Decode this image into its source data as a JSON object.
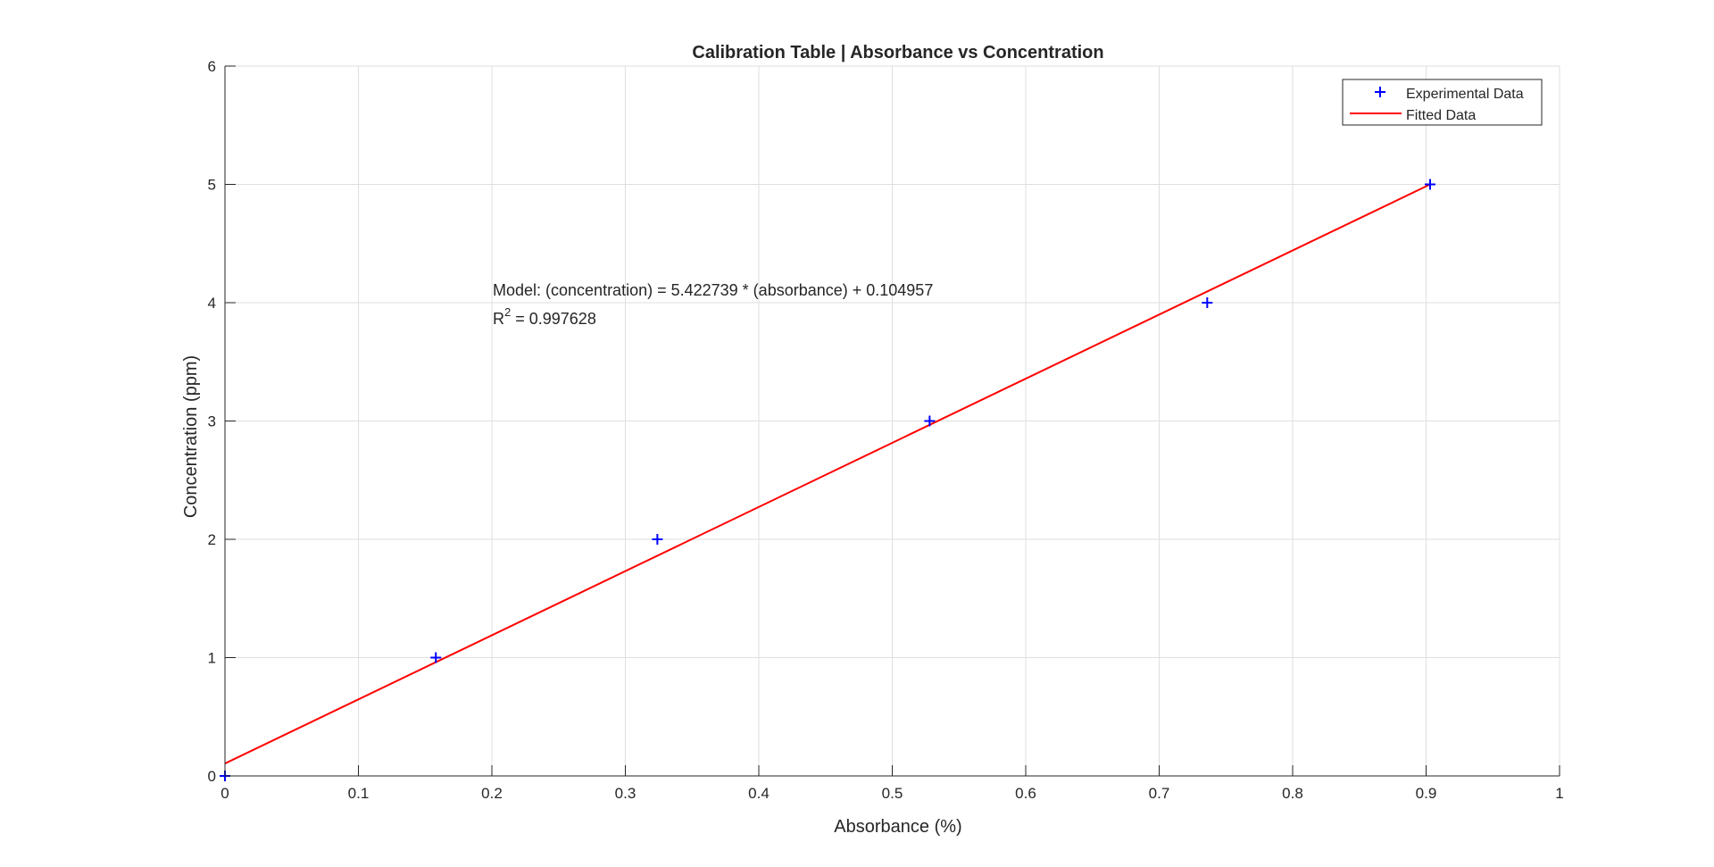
{
  "chart_data": {
    "type": "scatter",
    "title": "Calibration Table | Absorbance vs Concentration",
    "xlabel": "Absorbance (%)",
    "ylabel": "Concentration (ppm)",
    "xlim": [
      0,
      1
    ],
    "ylim": [
      0,
      6
    ],
    "xticks": [
      0,
      0.1,
      0.2,
      0.3,
      0.4,
      0.5,
      0.6,
      0.7,
      0.8,
      0.9,
      1
    ],
    "xtick_labels": [
      "0",
      "0.1",
      "0.2",
      "0.3",
      "0.4",
      "0.5",
      "0.6",
      "0.7",
      "0.8",
      "0.9",
      "1"
    ],
    "yticks": [
      0,
      1,
      2,
      3,
      4,
      5,
      6
    ],
    "ytick_labels": [
      "0",
      "1",
      "2",
      "3",
      "4",
      "5",
      "6"
    ],
    "grid": true,
    "legend_position": "top-right",
    "series": [
      {
        "name": "Experimental Data",
        "kind": "markers",
        "marker": "plus",
        "color": "#0000ff",
        "x": [
          0.0,
          0.158,
          0.324,
          0.528,
          0.736,
          0.903
        ],
        "y": [
          0,
          1,
          2,
          3,
          4,
          5
        ]
      },
      {
        "name": "Fitted Data",
        "kind": "line",
        "color": "#ff0000",
        "x": [
          0.0,
          0.903
        ],
        "y": [
          0.104957,
          5.0
        ]
      }
    ],
    "annotation": {
      "model": "Model: (concentration) = 5.422739 * (absorbance) + 0.104957",
      "r2_base": "R",
      "r2_sup": "2",
      "r2_value": " = 0.997628"
    }
  }
}
